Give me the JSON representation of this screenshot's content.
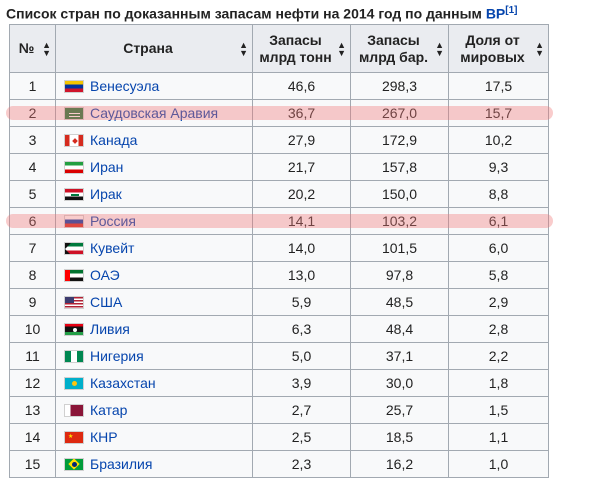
{
  "caption": {
    "text": "Список стран по доказанным запасам нефти на 2014 год по данным",
    "source_link": "BP",
    "ref": "[1]"
  },
  "headers": {
    "rank": "№",
    "country": "Страна",
    "tonnes_line1": "Запасы",
    "tonnes_line2": "млрд тонн",
    "barrels_line1": "Запасы",
    "barrels_line2": "млрд бар.",
    "share_line1": "Доля от",
    "share_line2": "мировых"
  },
  "rows": [
    {
      "rank": "1",
      "country": "Венесуэла",
      "tonnes": "46,6",
      "barrels": "298,3",
      "share": "17,5",
      "flag": "venezuela-flag-icon",
      "highlight": false
    },
    {
      "rank": "2",
      "country": "Саудовская Аравия",
      "tonnes": "36,7",
      "barrels": "267,0",
      "share": "15,7",
      "flag": "saudi-arabia-flag-icon",
      "highlight": true
    },
    {
      "rank": "3",
      "country": "Канада",
      "tonnes": "27,9",
      "barrels": "172,9",
      "share": "10,2",
      "flag": "canada-flag-icon",
      "highlight": false
    },
    {
      "rank": "4",
      "country": "Иран",
      "tonnes": "21,7",
      "barrels": "157,8",
      "share": "9,3",
      "flag": "iran-flag-icon",
      "highlight": false
    },
    {
      "rank": "5",
      "country": "Ирак",
      "tonnes": "20,2",
      "barrels": "150,0",
      "share": "8,8",
      "flag": "iraq-flag-icon",
      "highlight": false
    },
    {
      "rank": "6",
      "country": "Россия",
      "tonnes": "14,1",
      "barrels": "103,2",
      "share": "6,1",
      "flag": "russia-flag-icon",
      "highlight": true
    },
    {
      "rank": "7",
      "country": "Кувейт",
      "tonnes": "14,0",
      "barrels": "101,5",
      "share": "6,0",
      "flag": "kuwait-flag-icon",
      "highlight": false
    },
    {
      "rank": "8",
      "country": "ОАЭ",
      "tonnes": "13,0",
      "barrels": "97,8",
      "share": "5,8",
      "flag": "uae-flag-icon",
      "highlight": false
    },
    {
      "rank": "9",
      "country": "США",
      "tonnes": "5,9",
      "barrels": "48,5",
      "share": "2,9",
      "flag": "usa-flag-icon",
      "highlight": false
    },
    {
      "rank": "10",
      "country": "Ливия",
      "tonnes": "6,3",
      "barrels": "48,4",
      "share": "2,8",
      "flag": "libya-flag-icon",
      "highlight": false
    },
    {
      "rank": "11",
      "country": "Нигерия",
      "tonnes": "5,0",
      "barrels": "37,1",
      "share": "2,2",
      "flag": "nigeria-flag-icon",
      "highlight": false
    },
    {
      "rank": "12",
      "country": "Казахстан",
      "tonnes": "3,9",
      "barrels": "30,0",
      "share": "1,8",
      "flag": "kazakhstan-flag-icon",
      "highlight": false
    },
    {
      "rank": "13",
      "country": "Катар",
      "tonnes": "2,7",
      "barrels": "25,7",
      "share": "1,5",
      "flag": "qatar-flag-icon",
      "highlight": false
    },
    {
      "rank": "14",
      "country": "КНР",
      "tonnes": "2,5",
      "barrels": "18,5",
      "share": "1,1",
      "flag": "china-flag-icon",
      "highlight": false
    },
    {
      "rank": "15",
      "country": "Бразилия",
      "tonnes": "2,3",
      "barrels": "16,2",
      "share": "1,0",
      "flag": "brazil-flag-icon",
      "highlight": false
    }
  ],
  "colors": {
    "header_bg": "#eaecf0",
    "cell_bg": "#f8f9fa",
    "border": "#a2a9b1",
    "link": "#0645ad",
    "highlight": "#f07878"
  }
}
